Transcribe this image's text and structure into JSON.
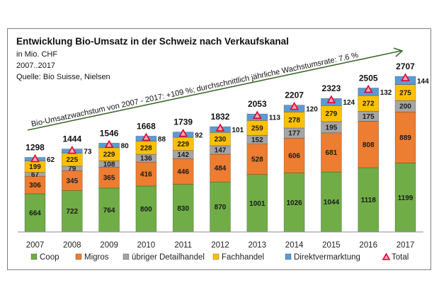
{
  "chart_data": {
    "type": "bar",
    "stacked": true,
    "title": "Entwicklung Bio-Umsatz in der Schweiz nach Verkaufskanal",
    "subtitle_lines": [
      "in Mio. CHF",
      "2007..2017",
      "Quelle: Bio Suisse, Nielsen"
    ],
    "xlabel": "",
    "ylabel": "",
    "categories": [
      "2007",
      "2008",
      "2009",
      "2010",
      "2011",
      "2012",
      "2013",
      "2014",
      "2015",
      "2016",
      "2017"
    ],
    "series": [
      {
        "name": "Coop",
        "color": "#70AD47",
        "values": [
          664,
          722,
          764,
          800,
          830,
          870,
          1001,
          1026,
          1044,
          1118,
          1199
        ]
      },
      {
        "name": "Migros",
        "color": "#ED7D31",
        "values": [
          306,
          345,
          365,
          416,
          446,
          484,
          528,
          606,
          681,
          808,
          889
        ]
      },
      {
        "name": "übriger Detailhandel",
        "color": "#A5A5A5",
        "values": [
          67,
          79,
          108,
          136,
          142,
          147,
          152,
          177,
          195,
          175,
          200
        ]
      },
      {
        "name": "Fachhandel",
        "color": "#FFC000",
        "values": [
          199,
          225,
          229,
          228,
          229,
          230,
          259,
          278,
          279,
          272,
          275
        ]
      },
      {
        "name": "Direktvermarktung",
        "color": "#5B9BD5",
        "values": [
          62,
          73,
          80,
          88,
          92,
          101,
          113,
          120,
          124,
          132,
          144
        ]
      }
    ],
    "totals": {
      "name": "Total",
      "color": "#E3002B",
      "values": [
        1298,
        1444,
        1546,
        1668,
        1739,
        1832,
        2053,
        2207,
        2323,
        2505,
        2707
      ]
    },
    "ylim": [
      0,
      2707
    ],
    "grid": false,
    "legend_position": "bottom",
    "annotation": "Bio-Umsatzwachstum von 2007 - 2017: +109 %; durchschnittlich jährliche Wachstumsrate: 7.6 %"
  }
}
